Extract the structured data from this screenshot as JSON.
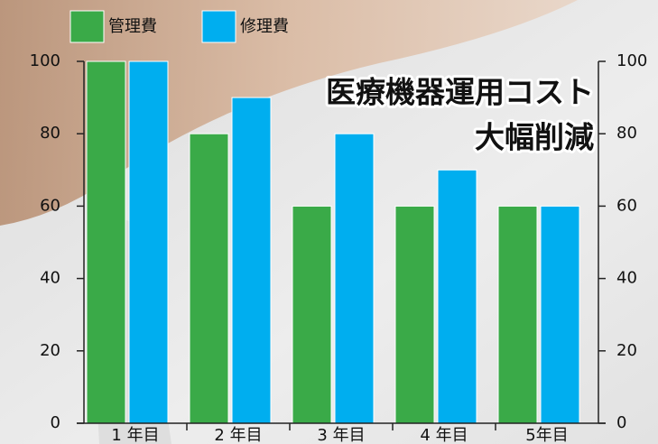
{
  "chart_data": {
    "type": "bar",
    "title_lines": [
      "医療機器運用コスト",
      "大幅削減"
    ],
    "categories": [
      "1 年目",
      "2 年目",
      "3 年目",
      "4 年目",
      "5年目"
    ],
    "series": [
      {
        "name": "管理費",
        "color": "#3aaa48",
        "values": [
          100,
          80,
          60,
          60,
          60
        ]
      },
      {
        "name": "修理費",
        "color": "#00aeef",
        "values": [
          100,
          90,
          80,
          70,
          60
        ]
      }
    ],
    "ylim": [
      0,
      100
    ],
    "yticks": [
      0,
      20,
      40,
      60,
      80,
      100
    ],
    "y2lim": [
      0,
      100
    ],
    "y2ticks": [
      0,
      20,
      40,
      60,
      80,
      100
    ],
    "legend": "top-left"
  }
}
